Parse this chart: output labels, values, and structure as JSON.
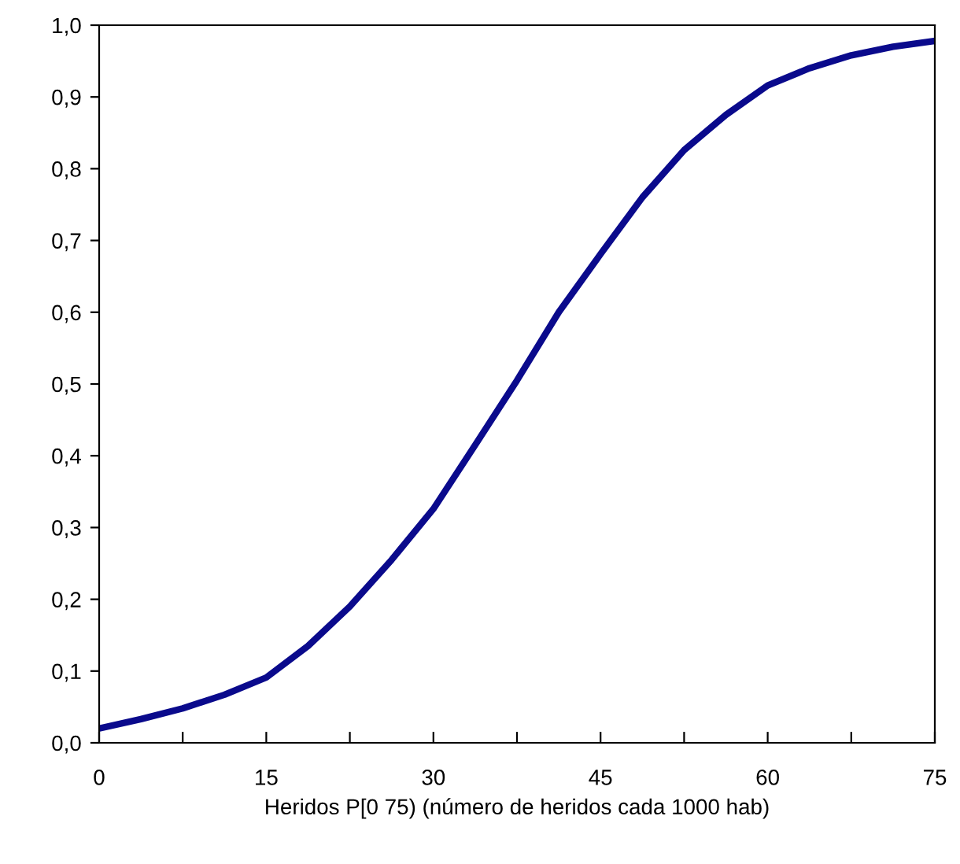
{
  "chart_data": {
    "type": "line",
    "xlabel": "Heridos P[0 75) (número de heridos cada 1000 hab)",
    "x": [
      0,
      3.75,
      7.5,
      11.25,
      15,
      18.75,
      22.5,
      26.25,
      30,
      33.75,
      37.5,
      41.25,
      45,
      48.75,
      52.5,
      56.25,
      60,
      63.75,
      67.5,
      71.25,
      75
    ],
    "series": [
      {
        "color": "#0a0a8c",
        "values": [
          0.02,
          0.033,
          0.048,
          0.067,
          0.091,
          0.135,
          0.19,
          0.255,
          0.326,
          0.415,
          0.505,
          0.6,
          0.681,
          0.76,
          0.826,
          0.875,
          0.916,
          0.94,
          0.958,
          0.97,
          0.978
        ]
      }
    ],
    "xlim": [
      0,
      75
    ],
    "ylim": [
      0,
      1
    ],
    "xticks": [
      0,
      {
        "value": 7.5,
        "label": null
      },
      15,
      {
        "value": 22.5,
        "label": null
      },
      30,
      {
        "value": 37.5,
        "label": null
      },
      45,
      {
        "value": 52.5,
        "label": null
      },
      60,
      {
        "value": 67.5,
        "label": null
      },
      75
    ],
    "yticks": [
      {
        "value": 0,
        "label": "0,0"
      },
      {
        "value": 0.1,
        "label": "0,1"
      },
      {
        "value": 0.2,
        "label": "0,2"
      },
      {
        "value": 0.3,
        "label": "0,3"
      },
      {
        "value": 0.4,
        "label": "0,4"
      },
      {
        "value": 0.5,
        "label": "0,5"
      },
      {
        "value": 0.6,
        "label": "0,6"
      },
      {
        "value": 0.7,
        "label": "0,7"
      },
      {
        "value": 0.8,
        "label": "0,8"
      },
      {
        "value": 0.9,
        "label": "0,9"
      },
      {
        "value": 1,
        "label": "1,0"
      }
    ],
    "grid": false,
    "marker": "none",
    "line_style": "solid",
    "legend": false
  }
}
